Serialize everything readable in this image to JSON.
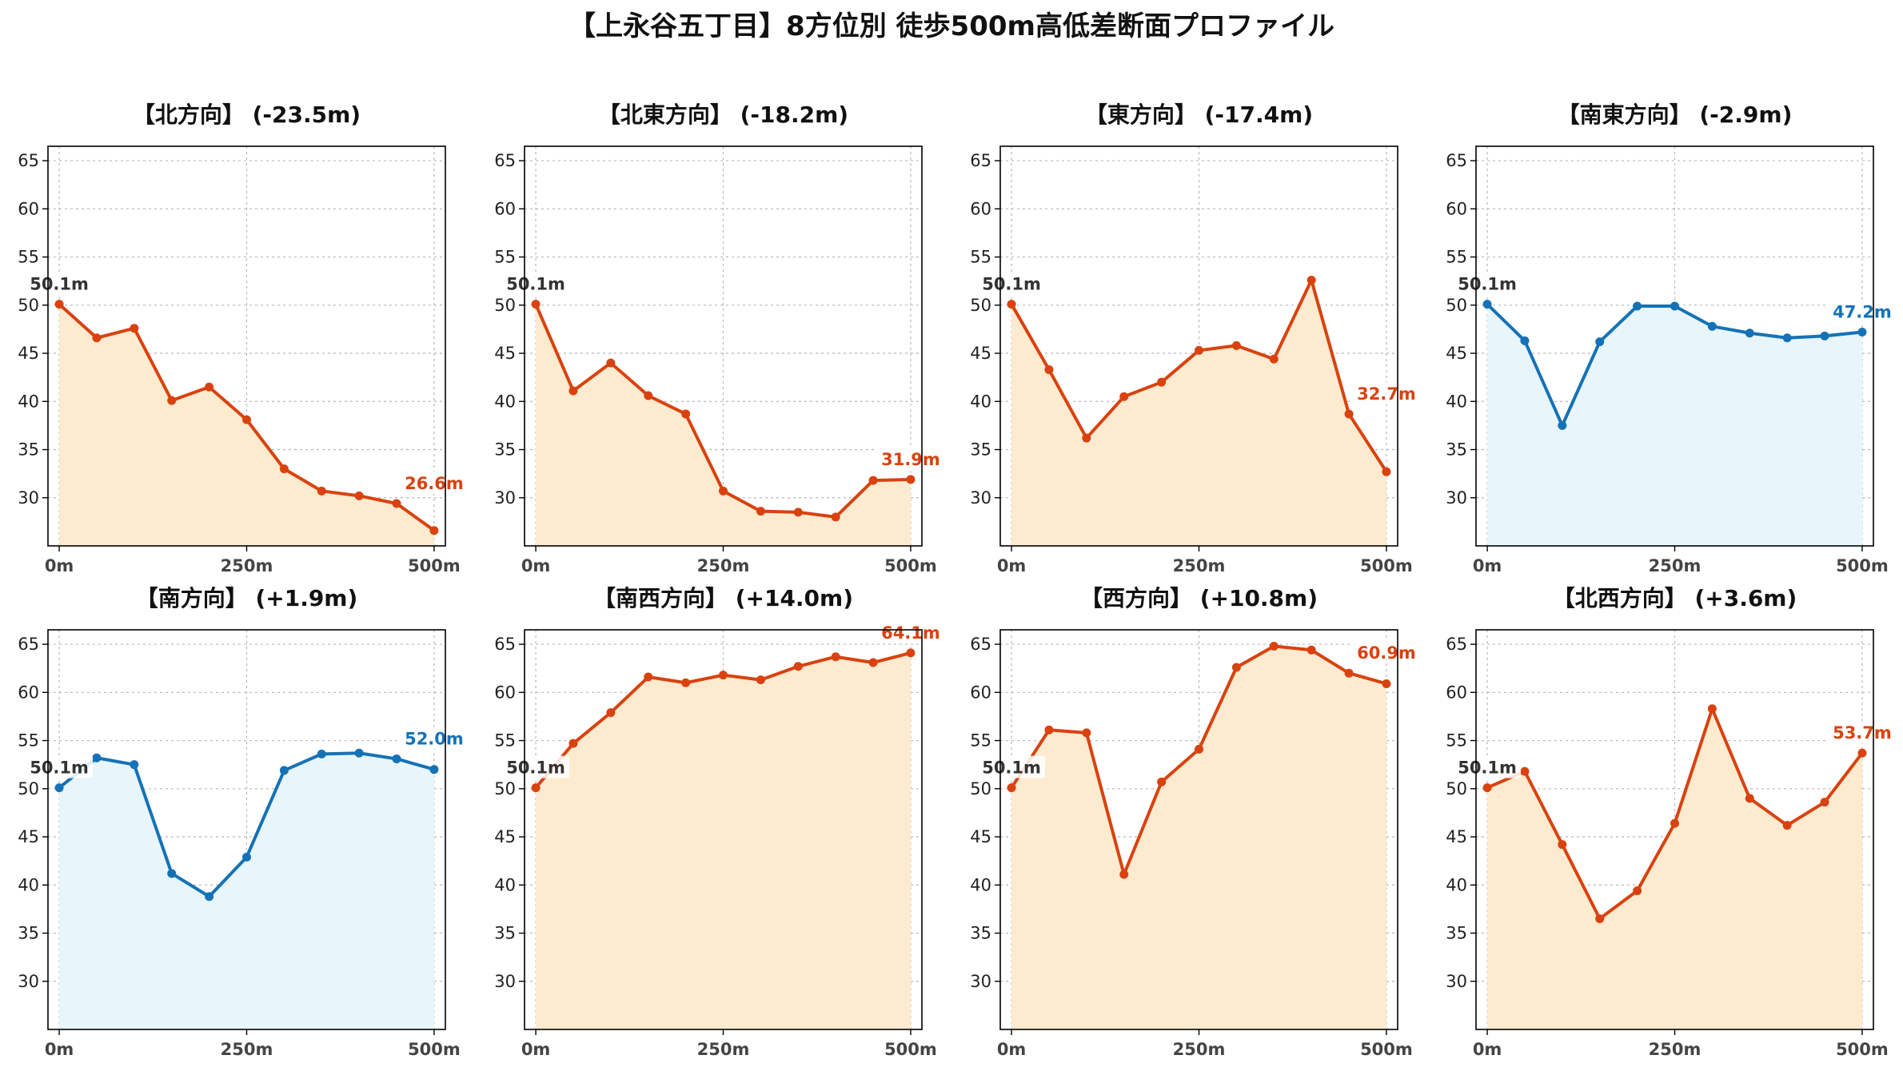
{
  "title": "【上永谷五丁目】8方位別 徒歩500m高低差断面プロファイル",
  "colors": {
    "down_line": "#d9420f",
    "down_fill": "#fdebd0",
    "up_line": "#1572b6",
    "up_fill": "#e8f5fb",
    "start_label": "#333333"
  },
  "chart_data": [
    {
      "type": "area",
      "title": "【北方向】 (-23.5m)",
      "trend": "down",
      "x": [
        0,
        50,
        100,
        150,
        200,
        250,
        300,
        350,
        400,
        450,
        500
      ],
      "y": [
        50.1,
        46.6,
        47.6,
        40.1,
        41.5,
        38.1,
        33.0,
        30.7,
        30.2,
        29.4,
        26.6
      ],
      "start_label": "50.1m",
      "end_label": "26.6m",
      "xticks": [
        "0m",
        "250m",
        "500m"
      ],
      "yticks": [
        30,
        35,
        40,
        45,
        50,
        55,
        60,
        65
      ],
      "xlim": [
        -15,
        515
      ],
      "ylim": [
        25,
        66.5
      ],
      "grid": true
    },
    {
      "type": "area",
      "title": "【北東方向】 (-18.2m)",
      "trend": "down",
      "x": [
        0,
        50,
        100,
        150,
        200,
        250,
        300,
        350,
        400,
        450,
        500
      ],
      "y": [
        50.1,
        41.1,
        44.0,
        40.6,
        38.7,
        30.7,
        28.6,
        28.5,
        28.0,
        31.8,
        31.9
      ],
      "start_label": "50.1m",
      "end_label": "31.9m",
      "xticks": [
        "0m",
        "250m",
        "500m"
      ],
      "yticks": [
        30,
        35,
        40,
        45,
        50,
        55,
        60,
        65
      ],
      "xlim": [
        -15,
        515
      ],
      "ylim": [
        25,
        66.5
      ],
      "grid": true
    },
    {
      "type": "area",
      "title": "【東方向】 (-17.4m)",
      "trend": "down",
      "x": [
        0,
        50,
        100,
        150,
        200,
        250,
        300,
        350,
        400,
        450,
        500
      ],
      "y": [
        50.1,
        43.3,
        36.2,
        40.5,
        42.0,
        45.3,
        45.8,
        44.4,
        52.6,
        38.7,
        32.7
      ],
      "start_label": "50.1m",
      "end_label": "32.7m",
      "xticks": [
        "0m",
        "250m",
        "500m"
      ],
      "yticks": [
        30,
        35,
        40,
        45,
        50,
        55,
        60,
        65
      ],
      "xlim": [
        -15,
        515
      ],
      "ylim": [
        25,
        66.5
      ],
      "grid": true
    },
    {
      "type": "area",
      "title": "【南東方向】 (-2.9m)",
      "trend": "up",
      "x": [
        0,
        50,
        100,
        150,
        200,
        250,
        300,
        350,
        400,
        450,
        500
      ],
      "y": [
        50.1,
        46.3,
        37.5,
        46.2,
        49.9,
        49.9,
        47.8,
        47.1,
        46.6,
        46.8,
        47.2
      ],
      "start_label": "50.1m",
      "end_label": "47.2m",
      "xticks": [
        "0m",
        "250m",
        "500m"
      ],
      "yticks": [
        30,
        35,
        40,
        45,
        50,
        55,
        60,
        65
      ],
      "xlim": [
        -15,
        515
      ],
      "ylim": [
        25,
        66.5
      ],
      "grid": true
    },
    {
      "type": "area",
      "title": "【南方向】 (+1.9m)",
      "trend": "up",
      "x": [
        0,
        50,
        100,
        150,
        200,
        250,
        300,
        350,
        400,
        450,
        500
      ],
      "y": [
        50.1,
        53.2,
        52.5,
        41.2,
        38.8,
        42.9,
        51.9,
        53.6,
        53.7,
        53.1,
        52.0
      ],
      "start_label": "50.1m",
      "end_label": "52.0m",
      "xticks": [
        "0m",
        "250m",
        "500m"
      ],
      "yticks": [
        30,
        35,
        40,
        45,
        50,
        55,
        60,
        65
      ],
      "xlim": [
        -15,
        515
      ],
      "ylim": [
        25,
        66.5
      ],
      "grid": true
    },
    {
      "type": "area",
      "title": "【南西方向】 (+14.0m)",
      "trend": "down",
      "x": [
        0,
        50,
        100,
        150,
        200,
        250,
        300,
        350,
        400,
        450,
        500
      ],
      "y": [
        50.1,
        54.7,
        57.9,
        61.6,
        61.0,
        61.8,
        61.3,
        62.7,
        63.7,
        63.1,
        64.1
      ],
      "start_label": "50.1m",
      "end_label": "64.1m",
      "xticks": [
        "0m",
        "250m",
        "500m"
      ],
      "yticks": [
        30,
        35,
        40,
        45,
        50,
        55,
        60,
        65
      ],
      "xlim": [
        -15,
        515
      ],
      "ylim": [
        25,
        66.5
      ],
      "grid": true
    },
    {
      "type": "area",
      "title": "【西方向】 (+10.8m)",
      "trend": "down",
      "x": [
        0,
        50,
        100,
        150,
        200,
        250,
        300,
        350,
        400,
        450,
        500
      ],
      "y": [
        50.1,
        56.1,
        55.8,
        41.1,
        50.7,
        54.1,
        62.6,
        64.8,
        64.4,
        62.0,
        60.9
      ],
      "start_label": "50.1m",
      "end_label": "60.9m",
      "xticks": [
        "0m",
        "250m",
        "500m"
      ],
      "yticks": [
        30,
        35,
        40,
        45,
        50,
        55,
        60,
        65
      ],
      "xlim": [
        -15,
        515
      ],
      "ylim": [
        25,
        66.5
      ],
      "grid": true
    },
    {
      "type": "area",
      "title": "【北西方向】 (+3.6m)",
      "trend": "down",
      "x": [
        0,
        50,
        100,
        150,
        200,
        250,
        300,
        350,
        400,
        450,
        500
      ],
      "y": [
        50.1,
        51.8,
        44.2,
        36.5,
        39.4,
        46.4,
        58.3,
        49.0,
        46.2,
        48.6,
        53.7
      ],
      "start_label": "50.1m",
      "end_label": "53.7m",
      "xticks": [
        "0m",
        "250m",
        "500m"
      ],
      "yticks": [
        30,
        35,
        40,
        45,
        50,
        55,
        60,
        65
      ],
      "xlim": [
        -15,
        515
      ],
      "ylim": [
        25,
        66.5
      ],
      "grid": true
    }
  ]
}
